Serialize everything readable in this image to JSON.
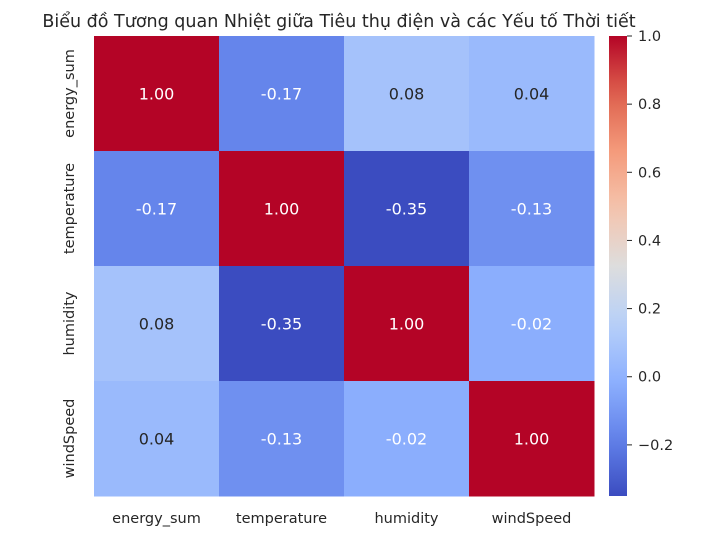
{
  "chart_data": {
    "type": "heatmap",
    "title": "Biểu đồ Tương quan Nhiệt giữa Tiêu thụ điện và các Yếu tố Thời tiết",
    "x_labels": [
      "energy_sum",
      "temperature",
      "humidity",
      "windSpeed"
    ],
    "y_labels": [
      "energy_sum",
      "temperature",
      "humidity",
      "windSpeed"
    ],
    "values": [
      [
        1.0,
        -0.17,
        0.08,
        0.04
      ],
      [
        -0.17,
        1.0,
        -0.35,
        -0.13
      ],
      [
        0.08,
        -0.35,
        1.0,
        -0.02
      ],
      [
        0.04,
        -0.13,
        -0.02,
        1.0
      ]
    ],
    "cell_labels": [
      [
        "1.00",
        "-0.17",
        "0.08",
        "0.04"
      ],
      [
        "-0.17",
        "1.00",
        "-0.35",
        "-0.13"
      ],
      [
        "0.08",
        "-0.35",
        "1.00",
        "-0.02"
      ],
      [
        "0.04",
        "-0.13",
        "-0.02",
        "1.00"
      ]
    ],
    "colormap": "coolwarm",
    "color_range": [
      -0.35,
      1.0
    ],
    "colorbar_ticks": [
      -0.2,
      0.0,
      0.2,
      0.4,
      0.6,
      0.8,
      1.0
    ],
    "colorbar_tick_labels": [
      "−0.2",
      "0.0",
      "0.2",
      "0.4",
      "0.6",
      "0.8",
      "1.0"
    ],
    "grid": false
  }
}
